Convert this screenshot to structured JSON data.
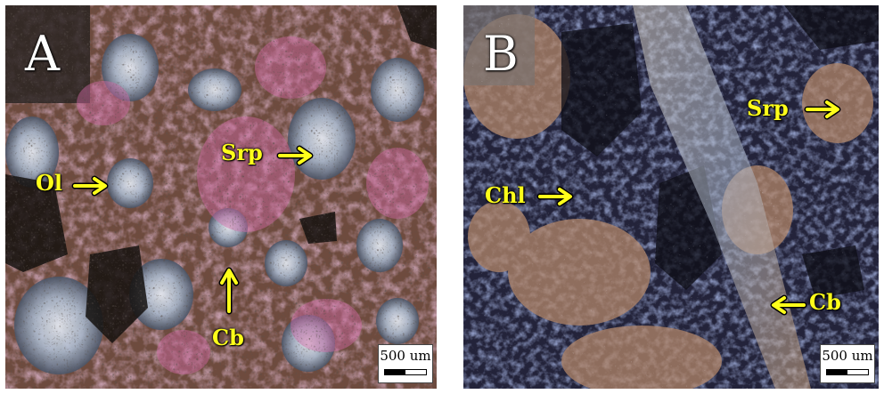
{
  "panels": [
    {
      "letter": "A",
      "labels": {
        "ol": "Ol",
        "srp": "Srp",
        "cb": "Cb"
      },
      "scalebar": "500 um",
      "colors": {
        "base": "#6b4a3c",
        "accent_pink": "#c0609a",
        "accent_blue": "#b9c6d8",
        "dark": "#1b1714"
      }
    },
    {
      "letter": "B",
      "labels": {
        "srp": "Srp",
        "chl": "Chl",
        "cb": "Cb"
      },
      "scalebar": "500 um",
      "colors": {
        "base": "#2a2a40",
        "accent_tan": "#b58a6a",
        "accent_blue": "#5a74a8",
        "dark": "#111118"
      }
    }
  ],
  "label_color": "#ffff1a"
}
